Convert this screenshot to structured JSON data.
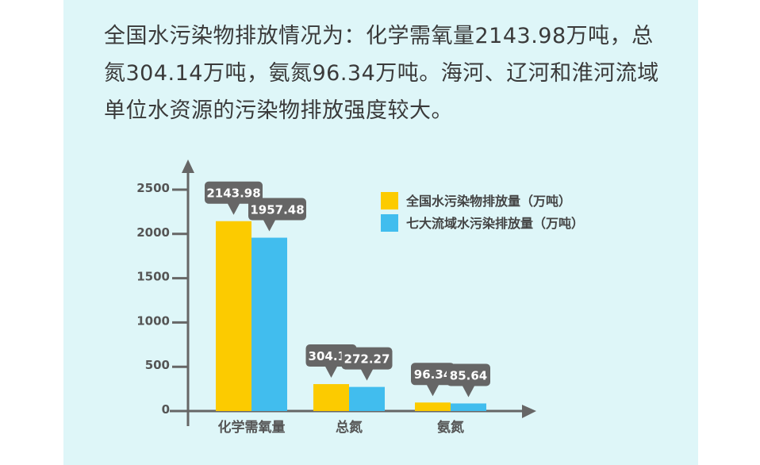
{
  "paragraph": "全国水污染物排放情况为：化学需氧量2143.98万吨，总氮304.14万吨，氨氮96.34万吨。海河、辽河和淮河流域单位水资源的污染物排放强度较大。",
  "colors": {
    "background": "#def6f8",
    "series1": "#fccb00",
    "series2": "#41bdee",
    "axis": "#666666",
    "label_bg": "#666666"
  },
  "chart_data": {
    "type": "bar",
    "categories": [
      "化学需氧量",
      "总氮",
      "氨氮"
    ],
    "series": [
      {
        "name": "全国水污染物排放量（万吨）",
        "values": [
          2143.98,
          304.14,
          96.34
        ],
        "labels": [
          "2143.98",
          "304.14",
          "96.34"
        ]
      },
      {
        "name": "七大流域水污染排放量（万吨）",
        "values": [
          1957.48,
          272.27,
          85.64
        ],
        "labels": [
          "1957.48",
          "272.27",
          "85.64"
        ]
      }
    ],
    "yticks": [
      "0",
      "500",
      "1000",
      "1500",
      "2000",
      "2500"
    ],
    "ylim": [
      0,
      2500
    ],
    "legend": "top-right",
    "grid": false
  }
}
